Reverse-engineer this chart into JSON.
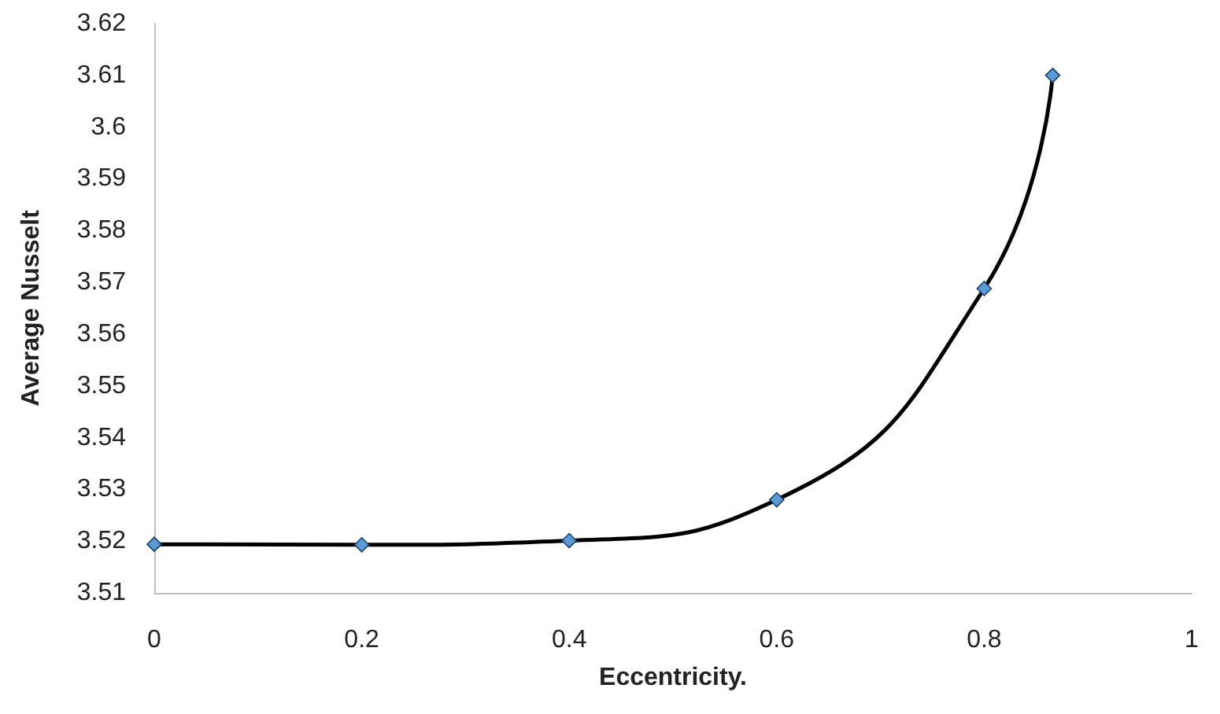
{
  "chart_data": {
    "type": "line",
    "xlabel": "Eccentricity.",
    "ylabel": "Average Nusselt",
    "x": [
      0,
      0.2,
      0.4,
      0.6,
      0.8,
      0.866
    ],
    "series": [
      {
        "color": "#000000",
        "values": [
          3.5194,
          3.5193,
          3.5201,
          3.528,
          3.5688,
          3.61
        ]
      }
    ],
    "marker": "diamond",
    "line_style": "solid",
    "grid": false,
    "xlim": [
      0,
      1
    ],
    "xticks": [
      0,
      0.2,
      0.4,
      0.6,
      0.8,
      1
    ],
    "ylim": [
      3.51,
      3.62
    ],
    "yticks": [
      3.51,
      3.52,
      3.53,
      3.54,
      3.55,
      3.56,
      3.57,
      3.58,
      3.59,
      3.6,
      3.61,
      3.62
    ]
  }
}
